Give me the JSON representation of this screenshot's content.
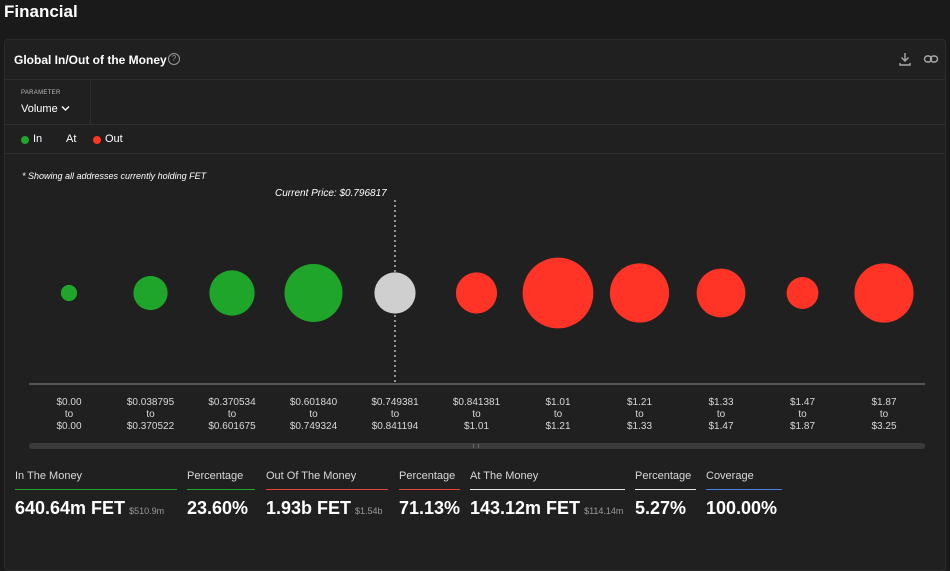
{
  "page": {
    "section_title": "Financial"
  },
  "card": {
    "title": "Global In/Out of the Money",
    "help_icon": "help-circle-icon",
    "download_icon": "download-icon",
    "link_icon": "link-icon"
  },
  "parameter": {
    "label": "PARAMETER",
    "value": "Volume"
  },
  "legend": [
    {
      "label": "In",
      "color": "#1ea52a"
    },
    {
      "label": "At",
      "color": null
    },
    {
      "label": "Out",
      "color": "#ff3426"
    }
  ],
  "note": "* Showing all addresses currently holding FET",
  "chart_data": {
    "type": "bubble",
    "title": "Global In/Out of the Money",
    "current_price_label": "Current Price: $0.796817",
    "current_price_index": 4,
    "categories": [
      {
        "from": "$0.00",
        "to": "$0.00",
        "status": "in",
        "size": 0.28
      },
      {
        "from": "$0.038795",
        "to": "$0.370522",
        "status": "in",
        "size": 0.59
      },
      {
        "from": "$0.370534",
        "to": "$0.601675",
        "status": "in",
        "size": 0.78
      },
      {
        "from": "$0.601840",
        "to": "$0.749324",
        "status": "in",
        "size": 1.0
      },
      {
        "from": "$0.749381",
        "to": "$0.841194",
        "status": "at",
        "size": 0.71
      },
      {
        "from": "$0.841381",
        "to": "$1.01",
        "status": "out",
        "size": 0.71
      },
      {
        "from": "$1.01",
        "to": "$1.21",
        "status": "out",
        "size": 1.22
      },
      {
        "from": "$1.21",
        "to": "$1.33",
        "status": "out",
        "size": 1.02
      },
      {
        "from": "$1.33",
        "to": "$1.47",
        "status": "out",
        "size": 0.84
      },
      {
        "from": "$1.47",
        "to": "$1.87",
        "status": "out",
        "size": 0.55
      },
      {
        "from": "$1.87",
        "to": "$3.25",
        "status": "out",
        "size": 1.02
      }
    ],
    "range_connector": "to",
    "colors": {
      "in": "#1ea52a",
      "at": "#cfcfcf",
      "out": "#ff3426"
    }
  },
  "stats": [
    {
      "label": "In The Money",
      "value": "640.64m FET",
      "sub": "$510.9m",
      "color": "#1ea52a"
    },
    {
      "label": "Percentage",
      "value": "23.60%",
      "sub": "",
      "color": "#1ea52a"
    },
    {
      "label": "Out Of The Money",
      "value": "1.93b FET",
      "sub": "$1.54b",
      "color": "#e0483a"
    },
    {
      "label": "Percentage",
      "value": "71.13%",
      "sub": "",
      "color": "#e0483a"
    },
    {
      "label": "At The Money",
      "value": "143.12m FET",
      "sub": "$114.14m",
      "color": "#e8e8e8"
    },
    {
      "label": "Percentage",
      "value": "5.27%",
      "sub": "",
      "color": "#e8e8e8"
    },
    {
      "label": "Coverage",
      "value": "100.00%",
      "sub": "",
      "color": "#4a7fe0"
    }
  ]
}
